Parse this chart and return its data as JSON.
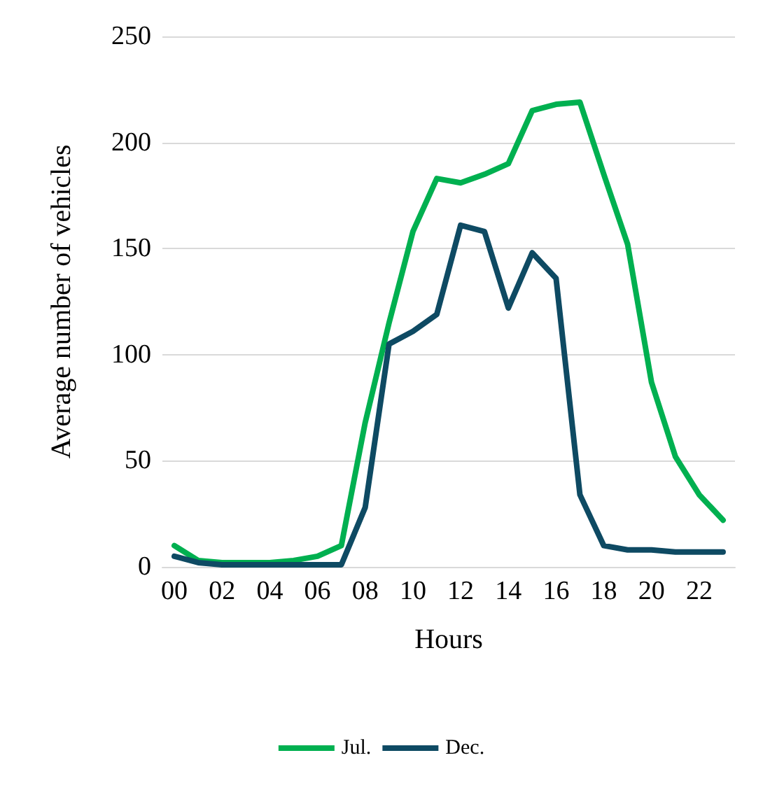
{
  "chart_data": {
    "type": "line",
    "xlabel": "Hours",
    "ylabel": "Average number of vehicles",
    "categories": [
      "00",
      null,
      "02",
      null,
      "04",
      null,
      "06",
      null,
      "08",
      null,
      "10",
      null,
      "12",
      null,
      "14",
      null,
      "16",
      null,
      "18",
      null,
      "20",
      null,
      "22",
      null
    ],
    "series": [
      {
        "name": "Jul.",
        "color": "#00b050",
        "values": [
          10,
          3,
          2,
          2,
          2,
          3,
          5,
          10,
          68,
          115,
          158,
          183,
          181,
          185,
          190,
          215,
          218,
          219,
          185,
          152,
          87,
          52,
          34,
          22
        ]
      },
      {
        "name": "Dec.",
        "color": "#0e4a63",
        "values": [
          5,
          2,
          1,
          1,
          1,
          1,
          1,
          1,
          28,
          105,
          111,
          119,
          161,
          158,
          122,
          148,
          136,
          34,
          10,
          8,
          8,
          7,
          7,
          7
        ]
      }
    ],
    "ylim": [
      0,
      250
    ],
    "yticks": [
      0,
      50,
      100,
      150,
      200,
      250
    ],
    "grid": "y",
    "legend": "bottom",
    "marker": "none",
    "line_style": "solid"
  }
}
